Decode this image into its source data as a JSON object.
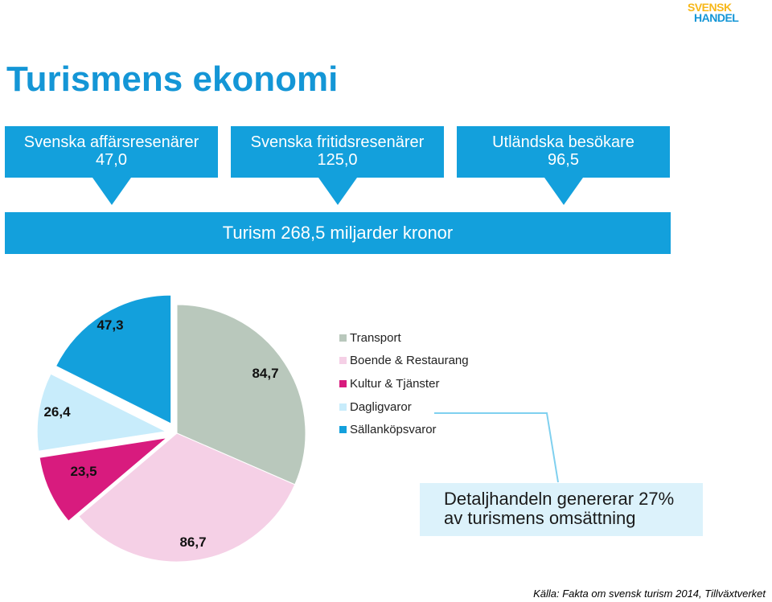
{
  "logo": {
    "line1": "SVENSK",
    "line2": "HANDEL"
  },
  "title": "Turismens ekonomi",
  "sources": [
    {
      "label": "Svenska affärsresenärer",
      "value": "47,0"
    },
    {
      "label": "Svenska fritidsresenärer",
      "value": "125,0"
    },
    {
      "label": "Utländska besökare",
      "value": "96,5"
    }
  ],
  "total_label": "Turism 268,5 miljarder kronor",
  "callout": {
    "line1": "Detaljhandeln genererar 27%",
    "line2": "av turismens omsättning"
  },
  "source_note": "Källa: Fakta om svensk turism 2014, Tillväxtverket",
  "colors": {
    "accent": "#13a0dc",
    "callout_bg": "#dcf2fb"
  },
  "chart_data": {
    "type": "pie",
    "categories": [
      "Transport",
      "Boende & Restaurang",
      "Kultur & Tjänster",
      "Dagligvaror",
      "Sällanköpsvaror"
    ],
    "values": [
      84.7,
      86.7,
      23.5,
      26.4,
      47.3
    ],
    "value_labels": [
      "84,7",
      "86,7",
      "23,5",
      "26,4",
      "47,3"
    ],
    "colors": [
      "#b9c8bc",
      "#f5d0e6",
      "#d81b7e",
      "#c8ecfb",
      "#13a0dc"
    ],
    "exploded": [
      false,
      false,
      true,
      true,
      true
    ],
    "legend_position": "right"
  }
}
